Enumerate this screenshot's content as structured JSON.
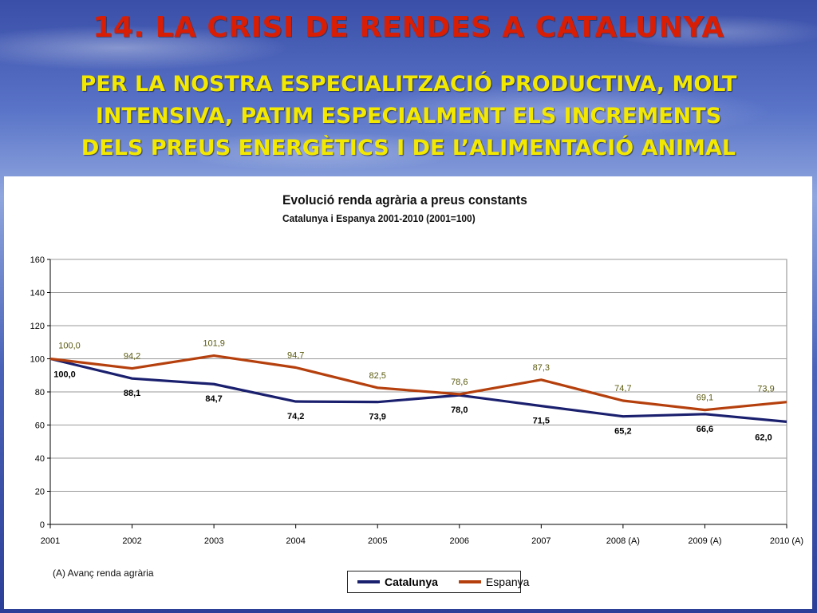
{
  "slide": {
    "title": "14. LA CRISI DE RENDES A CATALUNYA",
    "subtitle_lines": [
      "PER LA NOSTRA ESPECIALITZACIÓ PRODUCTIVA, MOLT",
      "INTENSIVA, PATIM ESPECIALMENT ELS INCREMENTS",
      "DELS PREUS ENERGÈTICS I DE L’ALIMENTACIÓ ANIMAL"
    ],
    "note": "(A) Avanç renda agrària"
  },
  "chart_data": {
    "type": "line",
    "title": "Evolució renda agrària a preus constants",
    "subtitle": "Catalunya i Espanya 2001-2010 (2001=100)",
    "categories": [
      "2001",
      "2002",
      "2003",
      "2004",
      "2005",
      "2006",
      "2007",
      "2008 (A)",
      "2009 (A)",
      "2010 (A)"
    ],
    "ylim": [
      0,
      160
    ],
    "yticks": [
      0,
      20,
      40,
      60,
      80,
      100,
      120,
      140,
      160
    ],
    "grid": true,
    "legend_position": "bottom",
    "series": [
      {
        "name": "Catalunya",
        "color": "#1a1f6e",
        "values": [
          100.0,
          88.1,
          84.7,
          74.2,
          73.9,
          78.0,
          71.5,
          65.2,
          66.6,
          62.0
        ],
        "labels": [
          "100,0",
          "88,1",
          "84,7",
          "74,2",
          "73,9",
          "78,0",
          "71,5",
          "65,2",
          "66,6",
          "62,0"
        ]
      },
      {
        "name": "Espanya",
        "color": "#b5400d",
        "values": [
          100.0,
          94.2,
          101.9,
          94.7,
          82.5,
          78.6,
          87.3,
          74.7,
          69.1,
          73.9
        ],
        "labels": [
          "100,0",
          "94,2",
          "101,9",
          "94,7",
          "82,5",
          "78,6",
          "87,3",
          "74,7",
          "69,1",
          "73,9"
        ]
      }
    ]
  }
}
